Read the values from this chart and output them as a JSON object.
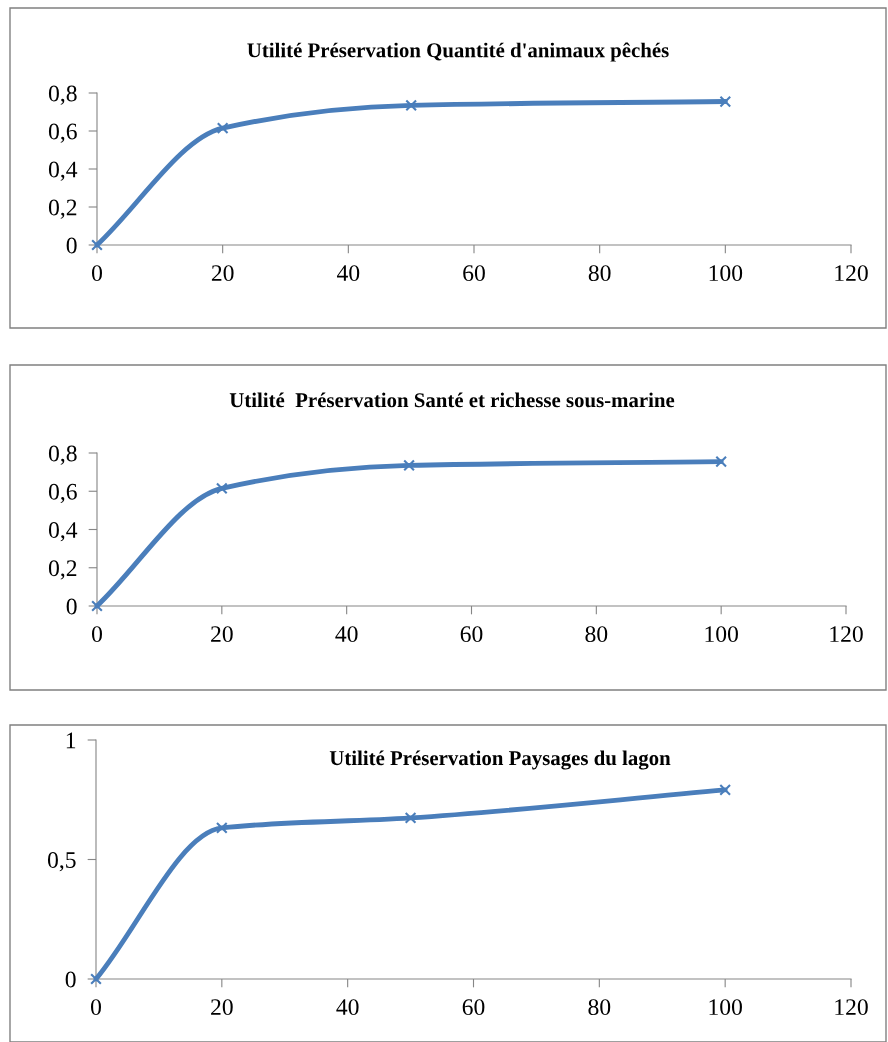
{
  "chart_data": [
    {
      "type": "line",
      "title": "Utilité Préservation Quantité d'animaux pêchés",
      "x": [
        0,
        20,
        50,
        100
      ],
      "series": [
        {
          "color": "#4a7ebb",
          "values": [
            0,
            0.615,
            0.735,
            0.755
          ]
        }
      ],
      "xlim": [
        0,
        120
      ],
      "xticks": [
        0,
        20,
        40,
        60,
        80,
        100,
        120
      ],
      "ylim": [
        0,
        0.8
      ],
      "yticks": [
        {
          "value": 0,
          "label": "0"
        },
        {
          "value": 0.2,
          "label": "0,2"
        },
        {
          "value": 0.4,
          "label": "0,4"
        },
        {
          "value": 0.6,
          "label": "0,6"
        },
        {
          "value": 0.8,
          "label": "0,8"
        }
      ],
      "marker": "cross",
      "grid": false,
      "legend": false
    },
    {
      "type": "line",
      "title": "Utilité  Préservation Santé et richesse sous-marine",
      "x": [
        0,
        20,
        50,
        100
      ],
      "series": [
        {
          "color": "#4a7ebb",
          "values": [
            0,
            0.615,
            0.735,
            0.755
          ]
        }
      ],
      "xlim": [
        0,
        120
      ],
      "xticks": [
        0,
        20,
        40,
        60,
        80,
        100,
        120
      ],
      "ylim": [
        0,
        0.8
      ],
      "yticks": [
        {
          "value": 0,
          "label": "0"
        },
        {
          "value": 0.2,
          "label": "0,2"
        },
        {
          "value": 0.4,
          "label": "0,4"
        },
        {
          "value": 0.6,
          "label": "0,6"
        },
        {
          "value": 0.8,
          "label": "0,8"
        }
      ],
      "marker": "cross",
      "grid": false,
      "legend": false
    },
    {
      "type": "line",
      "title": "Utilité Préservation Paysages du lagon",
      "x": [
        0,
        20,
        50,
        100
      ],
      "series": [
        {
          "color": "#4a7ebb",
          "values": [
            0,
            0.632,
            0.674,
            0.791
          ]
        }
      ],
      "xlim": [
        0,
        120
      ],
      "xticks": [
        0,
        20,
        40,
        60,
        80,
        100,
        120
      ],
      "ylim": [
        0,
        1
      ],
      "yticks": [
        {
          "value": 0,
          "label": "0"
        },
        {
          "value": 0.5,
          "label": "0,5"
        },
        {
          "value": 1,
          "label": "1"
        }
      ],
      "marker": "cross",
      "grid": false,
      "legend": false
    }
  ]
}
